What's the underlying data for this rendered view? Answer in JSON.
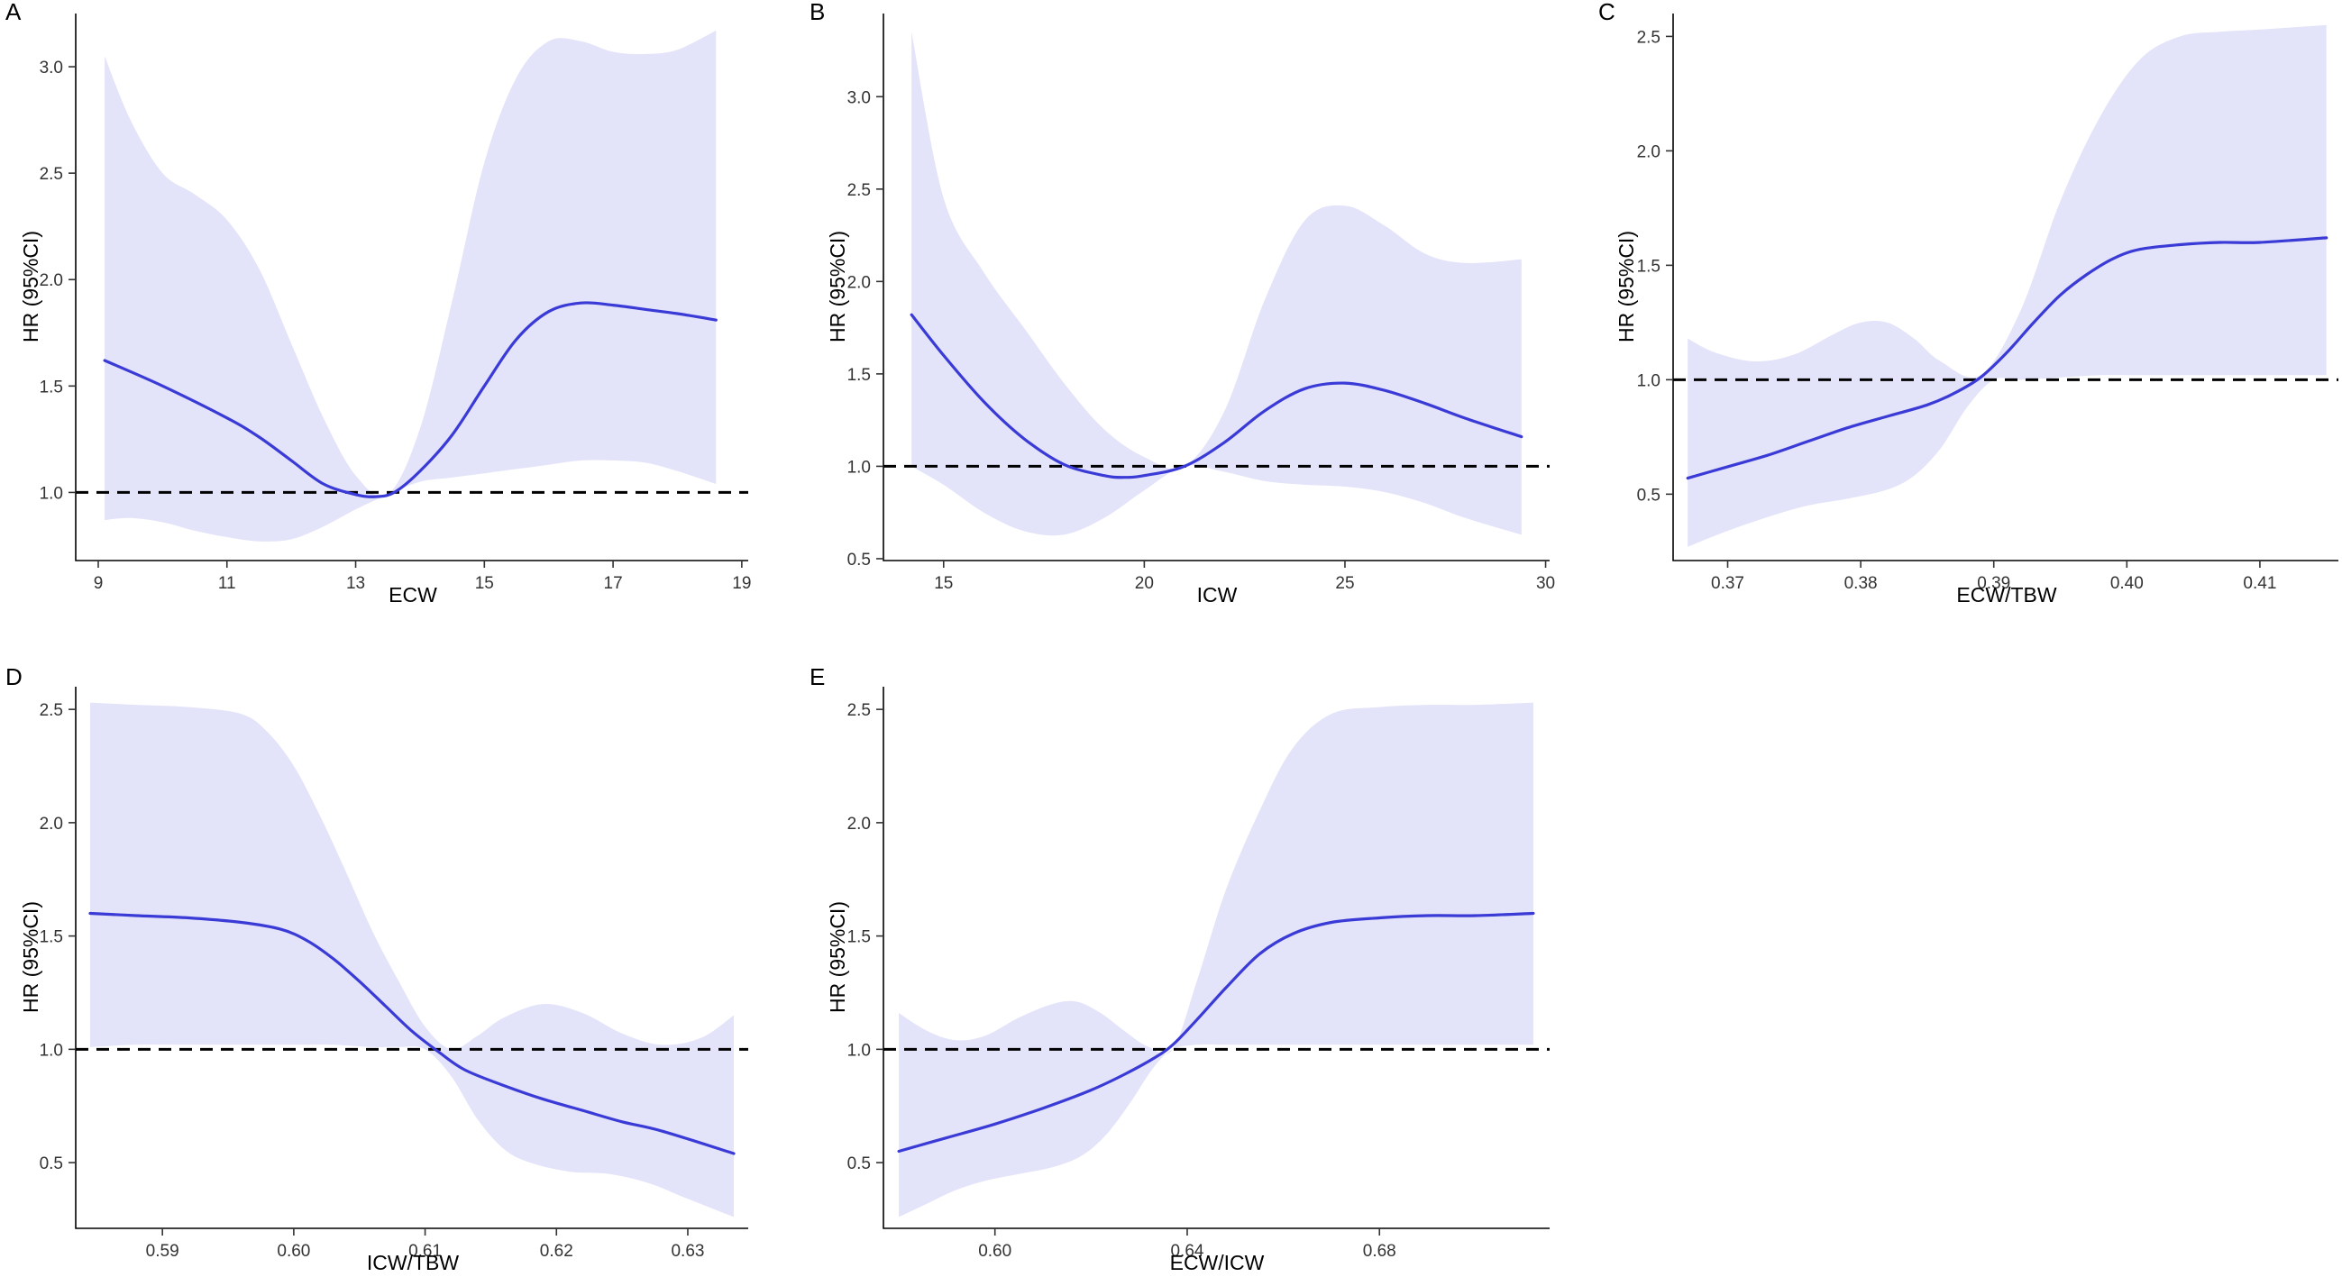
{
  "colors": {
    "band": "#E3E3FA",
    "curve": "#3A3AD6",
    "reference": "#000000",
    "text": "#333333"
  },
  "chart_data": [
    {
      "panel": "A",
      "type": "line",
      "xlabel": "ECW",
      "ylabel": "HR (95%CI)",
      "xlim": [
        8.65,
        19.1
      ],
      "ylim": [
        0.68,
        3.25
      ],
      "xticks": [
        9,
        11,
        13,
        15,
        17,
        19
      ],
      "xtick_labels": [
        "9",
        "11",
        "13",
        "15",
        "17",
        "19"
      ],
      "yticks": [
        1.0,
        1.5,
        2.0,
        2.5,
        3.0
      ],
      "ytick_labels": [
        "1.0",
        "1.5",
        "2.0",
        "2.5",
        "3.0"
      ],
      "reference_line": 1.0,
      "series": [
        {
          "name": "HR",
          "x": [
            9.1,
            10,
            11,
            11.5,
            12,
            12.5,
            13,
            13.3,
            13.6,
            14,
            14.5,
            15,
            15.5,
            16,
            16.5,
            17,
            17.5,
            18,
            18.6
          ],
          "y": [
            1.62,
            1.5,
            1.35,
            1.26,
            1.15,
            1.04,
            0.99,
            0.98,
            1.0,
            1.1,
            1.27,
            1.5,
            1.72,
            1.85,
            1.89,
            1.88,
            1.86,
            1.84,
            1.81
          ]
        },
        {
          "name": "95% CI upper",
          "x": [
            9.1,
            9.5,
            10,
            10.5,
            11,
            11.5,
            12,
            12.5,
            13,
            13.5,
            14,
            14.5,
            15,
            15.5,
            16,
            16.5,
            17,
            17.5,
            18,
            18.6
          ],
          "y": [
            3.05,
            2.75,
            2.5,
            2.4,
            2.28,
            2.05,
            1.7,
            1.35,
            1.08,
            0.99,
            1.3,
            1.9,
            2.55,
            2.95,
            3.12,
            3.12,
            3.07,
            3.06,
            3.08,
            3.17
          ]
        },
        {
          "name": "95% CI lower",
          "x": [
            9.1,
            9.5,
            10,
            10.5,
            11,
            11.5,
            12,
            12.5,
            13,
            13.5,
            14,
            14.5,
            15,
            15.5,
            16,
            16.5,
            17,
            17.5,
            18,
            18.6
          ],
          "y": [
            0.87,
            0.88,
            0.86,
            0.82,
            0.79,
            0.77,
            0.78,
            0.84,
            0.92,
            0.99,
            1.05,
            1.07,
            1.09,
            1.11,
            1.13,
            1.15,
            1.15,
            1.14,
            1.1,
            1.04
          ]
        }
      ]
    },
    {
      "panel": "B",
      "type": "line",
      "xlabel": "ICW",
      "ylabel": "HR (95%CI)",
      "xlim": [
        13.5,
        30.1
      ],
      "ylim": [
        0.49,
        3.45
      ],
      "xticks": [
        15,
        20,
        25,
        30
      ],
      "xtick_labels": [
        "15",
        "20",
        "25",
        "30"
      ],
      "yticks": [
        0.5,
        1.0,
        1.5,
        2.0,
        2.5,
        3.0
      ],
      "ytick_labels": [
        "0.5",
        "1.0",
        "1.5",
        "2.0",
        "2.5",
        "3.0"
      ],
      "reference_line": 1.0,
      "series": [
        {
          "name": "HR",
          "x": [
            14.2,
            15,
            16,
            17,
            18,
            19,
            19.5,
            20,
            21,
            22,
            23,
            24,
            25,
            26,
            27,
            28,
            29.4
          ],
          "y": [
            1.82,
            1.6,
            1.35,
            1.15,
            1.01,
            0.95,
            0.94,
            0.95,
            1.0,
            1.13,
            1.3,
            1.42,
            1.45,
            1.41,
            1.34,
            1.26,
            1.16
          ]
        },
        {
          "name": "95% CI upper",
          "x": [
            14.2,
            15,
            16,
            17,
            18,
            19,
            20,
            21,
            22,
            23,
            24,
            25,
            26,
            27,
            28,
            29.4
          ],
          "y": [
            3.35,
            2.45,
            2.05,
            1.75,
            1.45,
            1.2,
            1.05,
            1.0,
            1.3,
            1.9,
            2.33,
            2.41,
            2.3,
            2.15,
            2.1,
            2.12
          ]
        },
        {
          "name": "95% CI lower",
          "x": [
            14.2,
            15,
            16,
            17,
            18,
            19,
            20,
            21,
            22,
            23,
            24,
            25,
            26,
            27,
            28,
            29.4
          ],
          "y": [
            1.0,
            0.9,
            0.75,
            0.65,
            0.63,
            0.72,
            0.87,
            1.0,
            0.97,
            0.92,
            0.9,
            0.89,
            0.86,
            0.8,
            0.72,
            0.63
          ]
        }
      ]
    },
    {
      "panel": "C",
      "type": "line",
      "xlabel": "ECW/TBW",
      "ylabel": "HR (95%CI)",
      "xlim": [
        0.3659,
        0.4159
      ],
      "ylim": [
        0.21,
        2.6
      ],
      "xticks": [
        0.37,
        0.38,
        0.39,
        0.4,
        0.41
      ],
      "xtick_labels": [
        "0.37",
        "0.38",
        "0.39",
        "0.40",
        "0.41"
      ],
      "yticks": [
        0.5,
        1.0,
        1.5,
        2.0,
        2.5
      ],
      "ytick_labels": [
        "0.5",
        "1.0",
        "1.5",
        "2.0",
        "2.5"
      ],
      "reference_line": 1.0,
      "series": [
        {
          "name": "HR",
          "x": [
            0.367,
            0.37,
            0.373,
            0.376,
            0.379,
            0.382,
            0.385,
            0.387,
            0.389,
            0.391,
            0.393,
            0.395,
            0.397,
            0.399,
            0.401,
            0.404,
            0.407,
            0.41,
            0.415
          ],
          "y": [
            0.57,
            0.62,
            0.67,
            0.73,
            0.79,
            0.84,
            0.89,
            0.94,
            1.01,
            1.12,
            1.25,
            1.37,
            1.46,
            1.53,
            1.57,
            1.59,
            1.6,
            1.6,
            1.62
          ]
        },
        {
          "name": "95% CI upper",
          "x": [
            0.367,
            0.369,
            0.372,
            0.375,
            0.378,
            0.38,
            0.382,
            0.384,
            0.386,
            0.389,
            0.392,
            0.395,
            0.398,
            0.401,
            0.404,
            0.407,
            0.41,
            0.415
          ],
          "y": [
            1.18,
            1.12,
            1.08,
            1.11,
            1.2,
            1.25,
            1.25,
            1.18,
            1.08,
            1.02,
            1.3,
            1.78,
            2.15,
            2.4,
            2.5,
            2.52,
            2.53,
            2.55
          ]
        },
        {
          "name": "95% CI lower",
          "x": [
            0.367,
            0.37,
            0.373,
            0.376,
            0.379,
            0.382,
            0.384,
            0.386,
            0.388,
            0.39,
            0.392,
            0.395,
            0.398,
            0.401,
            0.404,
            0.407,
            0.41,
            0.415
          ],
          "y": [
            0.27,
            0.34,
            0.4,
            0.45,
            0.48,
            0.52,
            0.58,
            0.7,
            0.88,
            1.0,
            1.0,
            1.01,
            1.02,
            1.02,
            1.02,
            1.02,
            1.02,
            1.02
          ]
        }
      ]
    },
    {
      "panel": "D",
      "type": "line",
      "xlabel": "ICW/TBW",
      "ylabel": "HR (95%CI)",
      "xlim": [
        0.5834,
        0.6346
      ],
      "ylim": [
        0.21,
        2.6
      ],
      "xticks": [
        0.59,
        0.6,
        0.61,
        0.62,
        0.63
      ],
      "xtick_labels": [
        "0.59",
        "0.60",
        "0.61",
        "0.62",
        "0.63"
      ],
      "yticks": [
        0.5,
        1.0,
        1.5,
        2.0,
        2.5
      ],
      "ytick_labels": [
        "0.5",
        "1.0",
        "1.5",
        "2.0",
        "2.5"
      ],
      "reference_line": 1.0,
      "series": [
        {
          "name": "HR",
          "x": [
            0.5845,
            0.588,
            0.592,
            0.596,
            0.599,
            0.601,
            0.603,
            0.605,
            0.607,
            0.609,
            0.611,
            0.613,
            0.616,
            0.619,
            0.622,
            0.625,
            0.628,
            0.6335
          ],
          "y": [
            1.6,
            1.59,
            1.58,
            1.56,
            1.53,
            1.48,
            1.4,
            1.3,
            1.19,
            1.08,
            0.99,
            0.91,
            0.84,
            0.78,
            0.73,
            0.68,
            0.64,
            0.54
          ]
        },
        {
          "name": "95% CI upper",
          "x": [
            0.5845,
            0.588,
            0.592,
            0.596,
            0.598,
            0.6,
            0.602,
            0.604,
            0.606,
            0.608,
            0.61,
            0.612,
            0.614,
            0.616,
            0.619,
            0.622,
            0.625,
            0.628,
            0.631,
            0.6335
          ],
          "y": [
            2.53,
            2.52,
            2.51,
            2.48,
            2.4,
            2.25,
            2.03,
            1.78,
            1.52,
            1.3,
            1.1,
            1.0,
            1.06,
            1.14,
            1.2,
            1.16,
            1.07,
            1.02,
            1.05,
            1.15
          ]
        },
        {
          "name": "95% CI lower",
          "x": [
            0.5845,
            0.588,
            0.592,
            0.596,
            0.6,
            0.603,
            0.606,
            0.608,
            0.61,
            0.612,
            0.614,
            0.616,
            0.618,
            0.621,
            0.624,
            0.627,
            0.63,
            0.6335
          ],
          "y": [
            1.01,
            1.02,
            1.02,
            1.02,
            1.02,
            1.02,
            1.01,
            1.01,
            1.0,
            0.88,
            0.69,
            0.56,
            0.5,
            0.46,
            0.45,
            0.41,
            0.34,
            0.26
          ]
        }
      ]
    },
    {
      "panel": "E",
      "type": "line",
      "xlabel": "ECW/ICW",
      "ylabel": "HR (95%CI)",
      "xlim": [
        0.5768,
        0.7154
      ],
      "ylim": [
        0.21,
        2.6
      ],
      "xticks": [
        0.6,
        0.64,
        0.68
      ],
      "xtick_labels": [
        "0.60",
        "0.64",
        "0.68"
      ],
      "yticks": [
        0.5,
        1.0,
        1.5,
        2.0,
        2.5
      ],
      "ytick_labels": [
        "0.5",
        "1.0",
        "1.5",
        "2.0",
        "2.5"
      ],
      "reference_line": 1.0,
      "series": [
        {
          "name": "HR",
          "x": [
            0.58,
            0.59,
            0.6,
            0.61,
            0.62,
            0.627,
            0.633,
            0.637,
            0.642,
            0.648,
            0.655,
            0.662,
            0.67,
            0.68,
            0.69,
            0.7,
            0.712
          ],
          "y": [
            0.55,
            0.61,
            0.67,
            0.74,
            0.82,
            0.89,
            0.96,
            1.02,
            1.13,
            1.27,
            1.42,
            1.51,
            1.56,
            1.58,
            1.59,
            1.59,
            1.6
          ]
        },
        {
          "name": "95% CI upper",
          "x": [
            0.58,
            0.586,
            0.592,
            0.598,
            0.605,
            0.612,
            0.617,
            0.622,
            0.627,
            0.632,
            0.637,
            0.642,
            0.648,
            0.655,
            0.662,
            0.67,
            0.68,
            0.69,
            0.7,
            0.712
          ],
          "y": [
            1.16,
            1.08,
            1.04,
            1.06,
            1.14,
            1.2,
            1.21,
            1.16,
            1.08,
            1.01,
            1.0,
            1.3,
            1.7,
            2.05,
            2.33,
            2.48,
            2.51,
            2.52,
            2.52,
            2.53
          ]
        },
        {
          "name": "95% CI lower",
          "x": [
            0.58,
            0.586,
            0.592,
            0.598,
            0.605,
            0.612,
            0.618,
            0.623,
            0.628,
            0.633,
            0.637,
            0.642,
            0.648,
            0.655,
            0.665,
            0.68,
            0.712
          ],
          "y": [
            0.26,
            0.32,
            0.38,
            0.42,
            0.45,
            0.48,
            0.53,
            0.62,
            0.76,
            0.92,
            1.0,
            1.02,
            1.02,
            1.02,
            1.02,
            1.02,
            1.02
          ]
        }
      ]
    }
  ]
}
